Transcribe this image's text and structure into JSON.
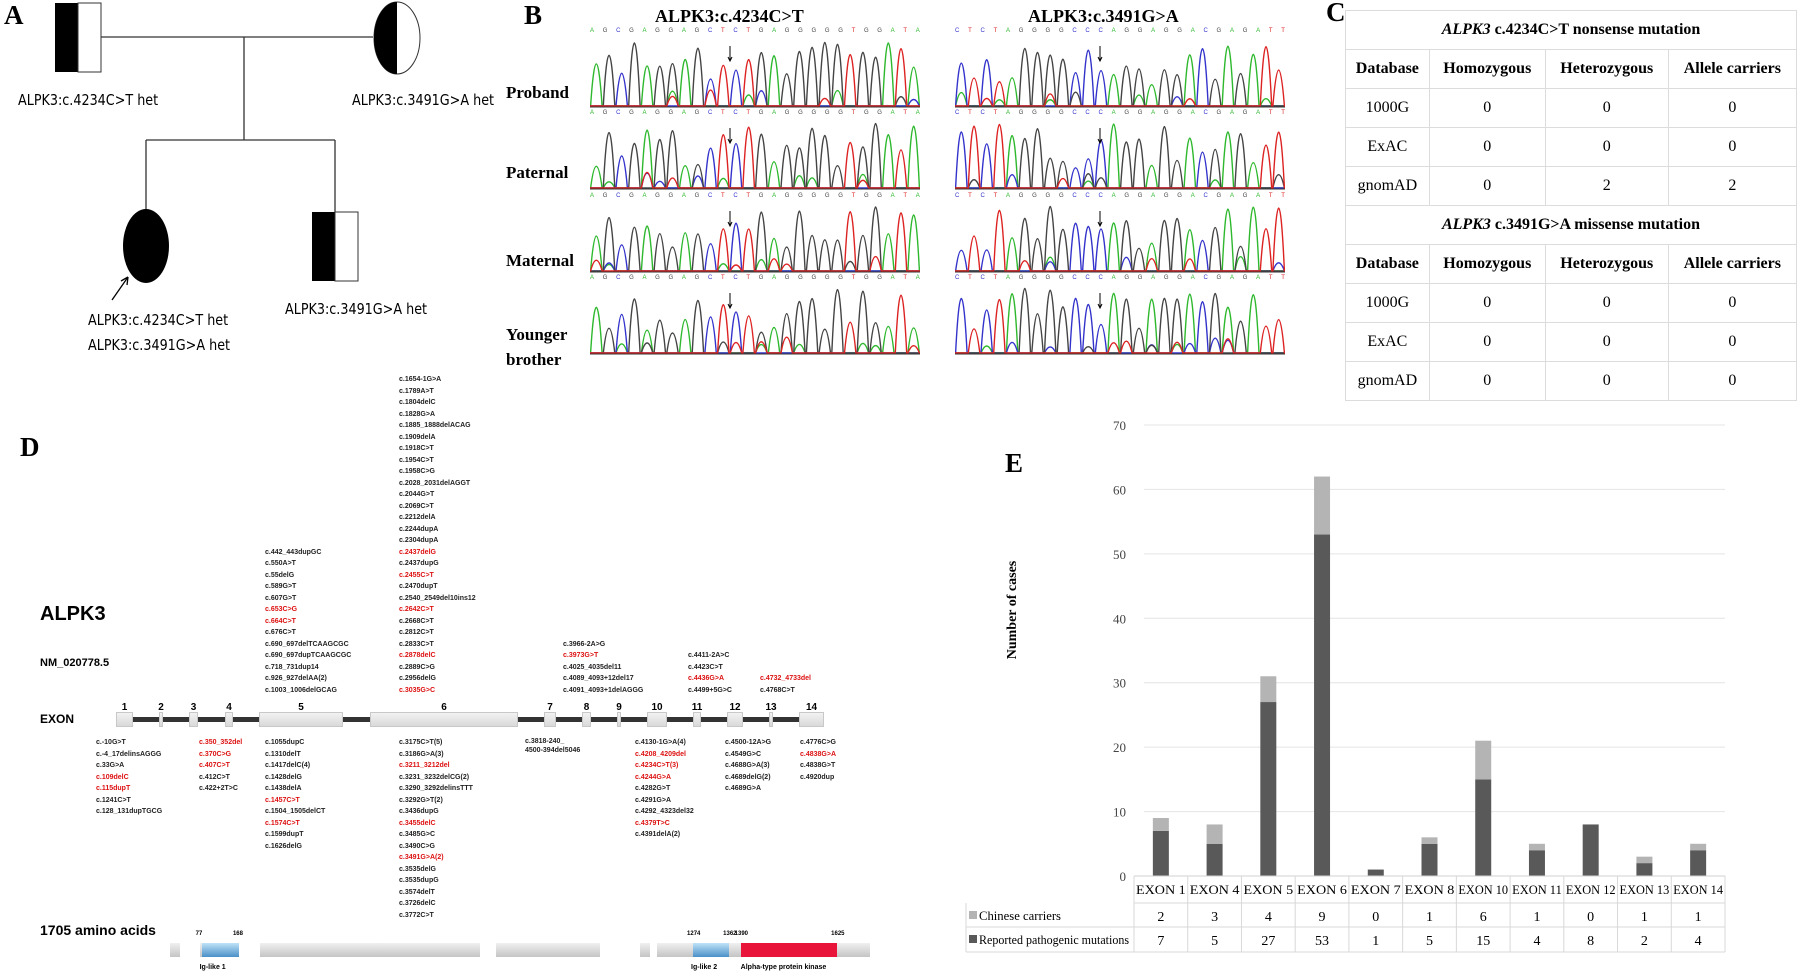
{
  "panels": {
    "a": "A",
    "b": "B",
    "c": "C",
    "d": "D",
    "e": "E"
  },
  "pedigree": {
    "father": "ALPK3:c.4234C>T het",
    "mother": "ALPK3:c.3491G>A het",
    "proband_line1": "ALPK3:c.4234C>T het",
    "proband_line2": "ALPK3:c.3491G>A het",
    "brother": "ALPK3:c.3491G>A het"
  },
  "sanger": {
    "titles": [
      "ALPK3:c.4234C>T",
      "ALPK3:c.3491G>A"
    ],
    "rows": [
      "Proband",
      "Paternal",
      "Maternal",
      "Younger brother"
    ],
    "sequences": [
      "AGCGAGGAGCTCTGAGGGGGTGGATA",
      "CTCTAGGGGCCCAGGAGGACGAGATT"
    ],
    "base_colors": {
      "A": "#2db82d",
      "C": "#3333cc",
      "G": "#444444",
      "T": "#dd2222"
    }
  },
  "population_table": {
    "sections": [
      {
        "caption_gene": "ALPK3",
        "caption_rest": " c.4234C>T nonsense mutation",
        "rows": [
          [
            "1000G",
            "0",
            "0",
            "0"
          ],
          [
            "ExAC",
            "0",
            "0",
            "0"
          ],
          [
            "gnomAD",
            "0",
            "2",
            "2"
          ]
        ]
      },
      {
        "caption_gene": "ALPK3",
        "caption_rest": " c.3491G>A missense mutation",
        "rows": [
          [
            "1000G",
            "0",
            "0",
            "0"
          ],
          [
            "ExAC",
            "0",
            "0",
            "0"
          ],
          [
            "gnomAD",
            "0",
            "0",
            "0"
          ]
        ]
      }
    ],
    "headers": [
      "Database",
      "Homozygous",
      "Heterozygous",
      "Allele carriers"
    ]
  },
  "gene_map": {
    "gene": "ALPK3",
    "transcript": "NM_020778.5",
    "exon_label": "EXON",
    "exons": [
      "1",
      "2",
      "3",
      "4",
      "5",
      "6",
      "7",
      "8",
      "9",
      "10",
      "11",
      "12",
      "13",
      "14"
    ],
    "mutation_colors": {
      "reported": "#d11111",
      "other": "#222222"
    },
    "lists": [
      {
        "id": "e1-below",
        "items": [
          [
            "c.-10G>T",
            0
          ],
          [
            "c.-4_17delinsAGGG",
            0
          ],
          [
            "c.33G>A",
            0
          ],
          [
            "c.109delC",
            1
          ],
          [
            "c.115dupT",
            1
          ],
          [
            "c.1241C>T",
            0
          ],
          [
            "c.128_131dupTGCG",
            0
          ]
        ]
      },
      {
        "id": "e34-below",
        "items": [
          [
            "c.350_352del",
            1
          ],
          [
            "c.370C>G",
            1
          ],
          [
            "c.407C>T",
            1
          ],
          [
            "c.412C>T",
            0
          ],
          [
            "c.422+2T>C",
            0
          ]
        ]
      },
      {
        "id": "e5-above",
        "items": [
          [
            "c.442_443dupGC",
            0
          ],
          [
            "c.550A>T",
            0
          ],
          [
            "c.55delG",
            0
          ],
          [
            "c.589G>T",
            0
          ],
          [
            "c.607G>T",
            0
          ],
          [
            "c.653C>G",
            1
          ],
          [
            "c.664C>T",
            1
          ],
          [
            "c.676C>T",
            0
          ],
          [
            "c.690_697delTCAAGCGC",
            0
          ],
          [
            "c.690_697dupTCAAGCGC",
            0
          ],
          [
            "c.718_731dup14",
            0
          ],
          [
            "c.926_927delAA(2)",
            0
          ],
          [
            "c.1003_1006delGCAG",
            0
          ]
        ]
      },
      {
        "id": "e5-below",
        "items": [
          [
            "c.1055dupC",
            0
          ],
          [
            "c.1310delT",
            0
          ],
          [
            "c.1417delC(4)",
            0
          ],
          [
            "c.1428delG",
            0
          ],
          [
            "c.1438delA",
            0
          ],
          [
            "c.1457C>T",
            1
          ],
          [
            "c.1504_1505delCT",
            0
          ],
          [
            "c.1574C>T",
            1
          ],
          [
            "c.1599dupT",
            0
          ],
          [
            "c.1626delG",
            0
          ]
        ]
      },
      {
        "id": "e6-above",
        "items": [
          [
            "c.1654-1G>A",
            0
          ],
          [
            "c.1789A>T",
            0
          ],
          [
            "c.1804delC",
            0
          ],
          [
            "c.1828G>A",
            0
          ],
          [
            "c.1885_1888delACAG",
            0
          ],
          [
            "c.1909delA",
            0
          ],
          [
            "c.1918C>T",
            0
          ],
          [
            "c.1954C>T",
            0
          ],
          [
            "c.1958C>G",
            0
          ],
          [
            "c.2028_2031delAGGT",
            0
          ],
          [
            "c.2044G>T",
            0
          ],
          [
            "c.2069C>T",
            0
          ],
          [
            "c.2212delA",
            0
          ],
          [
            "c.2244dupA",
            0
          ],
          [
            "c.2304dupA",
            0
          ],
          [
            "c.2437delG",
            1
          ],
          [
            "c.2437dupG",
            0
          ],
          [
            "c.2455C>T",
            1
          ],
          [
            "c.2470dupT",
            0
          ],
          [
            "c.2540_2549del10ins12",
            0
          ],
          [
            "c.2642C>T",
            1
          ],
          [
            "c.2668C>T",
            0
          ],
          [
            "c.2812C>T",
            0
          ],
          [
            "c.2833C>T",
            0
          ],
          [
            "c.2878delC",
            1
          ],
          [
            "c.2889C>G",
            0
          ],
          [
            "c.2956delG",
            0
          ],
          [
            "c.3035G>C",
            1
          ]
        ]
      },
      {
        "id": "e6-below",
        "items": [
          [
            "c.3175C>T(5)",
            0
          ],
          [
            "c.3186G>A(3)",
            0
          ],
          [
            "c.3211_3212del",
            1
          ],
          [
            "c.3231_3232delCG(2)",
            0
          ],
          [
            "c.3290_3292delinsTTT",
            0
          ],
          [
            "c.3292G>T(2)",
            0
          ],
          [
            "c.3436dupG",
            0
          ],
          [
            "c.3455delC",
            1
          ],
          [
            "c.3485G>C",
            0
          ],
          [
            "c.3490C>G",
            0
          ],
          [
            "c.3491G>A(2)",
            1
          ],
          [
            "c.3535delG",
            0
          ],
          [
            "c.3535dupG",
            0
          ],
          [
            "c.3574delT",
            0
          ],
          [
            "c.3726delC",
            0
          ],
          [
            "c.3772C>T",
            0
          ]
        ]
      },
      {
        "id": "e7-below",
        "items": [
          [
            "c.3818-240_",
            0
          ],
          [
            "4500-394del5046",
            0
          ]
        ]
      },
      {
        "id": "e8-above",
        "items": [
          [
            "c.3966-2A>G",
            0
          ],
          [
            "c.3973G>T",
            1
          ],
          [
            "c.4025_4035del11",
            0
          ],
          [
            "c.4089_4093+12del17",
            0
          ],
          [
            "c.4091_4093+1delAGGG",
            0
          ]
        ]
      },
      {
        "id": "e10-below",
        "items": [
          [
            "c.4130-1G>A(4)",
            0
          ],
          [
            "c.4208_4209del",
            1
          ],
          [
            "c.4234C>T(3)",
            1
          ],
          [
            "c.4244G>A",
            1
          ],
          [
            "c.4282G>T",
            0
          ],
          [
            "c.4291G>A",
            0
          ],
          [
            "c.4292_4323del32",
            0
          ],
          [
            "c.4379T>C",
            1
          ],
          [
            "c.4391delA(2)",
            0
          ]
        ]
      },
      {
        "id": "e11-above",
        "items": [
          [
            "c.4411-2A>C",
            0
          ],
          [
            "c.4423C>T",
            0
          ],
          [
            "c.4436G>A",
            1
          ],
          [
            "c.4499+5G>C",
            0
          ]
        ]
      },
      {
        "id": "e12-below",
        "items": [
          [
            "c.4500-12A>G",
            0
          ],
          [
            "c.4549G>C",
            0
          ],
          [
            "c.4688G>A(3)",
            0
          ],
          [
            "c.4689delG(2)",
            0
          ],
          [
            "c.4689G>A",
            0
          ]
        ]
      },
      {
        "id": "e13-above",
        "items": [
          [
            "c.4732_4733del",
            1
          ],
          [
            "c.4768C>T",
            0
          ]
        ]
      },
      {
        "id": "e14-below",
        "items": [
          [
            "c.4776C>G",
            0
          ],
          [
            "c.4838G>A",
            1
          ],
          [
            "c.4838G>T",
            0
          ],
          [
            "c.4920dup",
            0
          ]
        ]
      }
    ]
  },
  "protein": {
    "length_label": "1705 amino acids",
    "length": 1705,
    "domains": [
      {
        "name": "Ig-like 1",
        "start": 77,
        "end": 168,
        "start_label": "77",
        "end_label": "168",
        "color": "#4a90c8"
      },
      {
        "name": "Ig-like 2",
        "start": 1274,
        "end": 1362,
        "start_label": "1274",
        "end_label": "1362",
        "color": "#4a90c8"
      },
      {
        "name": "Alpha-type protein kinase",
        "start": 1390,
        "end": 1625,
        "start_label": "1390",
        "end_label": "1625",
        "color": "#e8143a"
      }
    ]
  },
  "chart_data": {
    "type": "bar",
    "stacked": true,
    "title": "",
    "ylabel": "Number of cases",
    "xlabel": "",
    "ylim": [
      0,
      70
    ],
    "yticks": [
      0,
      10,
      20,
      30,
      40,
      50,
      60,
      70
    ],
    "grid": true,
    "categories": [
      "EXON 1",
      "EXON 4",
      "EXON 5",
      "EXON 6",
      "EXON 7",
      "EXON 8",
      "EXON 10",
      "EXON 11",
      "EXON 12",
      "EXON 13",
      "EXON 14"
    ],
    "series": [
      {
        "name": "Reported pathogenic mutations",
        "color": "#595959",
        "values": [
          7,
          5,
          27,
          53,
          1,
          5,
          15,
          4,
          8,
          2,
          4
        ]
      },
      {
        "name": "Chinese carriers",
        "color": "#b4b4b4",
        "values": [
          2,
          3,
          4,
          9,
          0,
          1,
          6,
          1,
          0,
          1,
          1
        ]
      }
    ],
    "legend": "data-table-below"
  }
}
